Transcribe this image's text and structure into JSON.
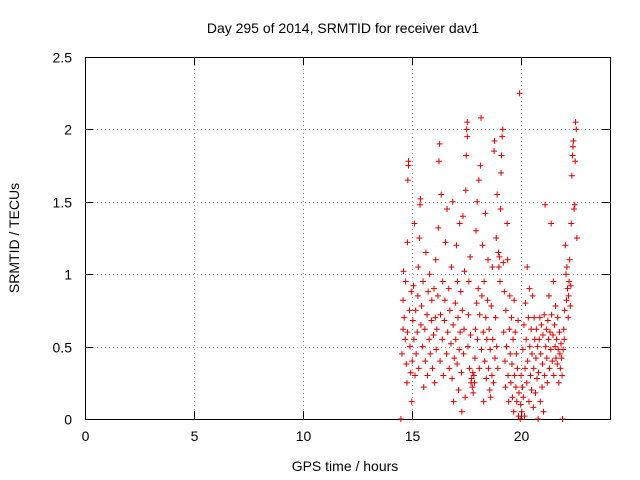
{
  "chart_data": {
    "type": "scatter",
    "title": "Day 295 of 2014, SRMTID for receiver dav1",
    "xlabel": "GPS time / hours",
    "ylabel": "SRMTID / TECUs",
    "xlim": [
      0,
      24.1
    ],
    "ylim": [
      0,
      2.5
    ],
    "x_ticks": [
      0,
      5,
      10,
      15,
      20
    ],
    "x_tick_labels": [
      "0",
      "5",
      "10",
      "15",
      "20"
    ],
    "y_ticks": [
      0,
      0.5,
      1,
      1.5,
      2,
      2.5
    ],
    "y_tick_labels": [
      "0",
      "0.5",
      "1",
      "1.5",
      "2",
      "2.5"
    ],
    "grid": true,
    "marker": "plus",
    "color": "#e00000",
    "series": [
      {
        "name": "SRMTID",
        "points": [
          [
            14.5,
            0.0
          ],
          [
            14.55,
            0.45
          ],
          [
            14.6,
            0.62
          ],
          [
            14.6,
            0.82
          ],
          [
            14.62,
            1.02
          ],
          [
            14.65,
            0.7
          ],
          [
            14.7,
            0.55
          ],
          [
            14.72,
            0.95
          ],
          [
            14.75,
            0.38
          ],
          [
            14.78,
            0.25
          ],
          [
            14.8,
            0.6
          ],
          [
            14.8,
            1.22
          ],
          [
            14.82,
            1.65
          ],
          [
            14.85,
            1.78
          ],
          [
            14.85,
            1.75
          ],
          [
            14.9,
            0.75
          ],
          [
            14.92,
            0.5
          ],
          [
            14.95,
            0.32
          ],
          [
            14.98,
            0.88
          ],
          [
            15.0,
            0.12
          ],
          [
            15.02,
            0.4
          ],
          [
            15.05,
            0.68
          ],
          [
            15.08,
            0.92
          ],
          [
            15.1,
            0.55
          ],
          [
            15.12,
            1.35
          ],
          [
            15.15,
            0.3
          ],
          [
            15.18,
            0.75
          ],
          [
            15.2,
            0.45
          ],
          [
            15.25,
            0.6
          ],
          [
            15.28,
            0.85
          ],
          [
            15.3,
            1.05
          ],
          [
            15.32,
            0.35
          ],
          [
            15.35,
            1.25
          ],
          [
            15.38,
            1.48
          ],
          [
            15.4,
            1.52
          ],
          [
            15.42,
            0.65
          ],
          [
            15.45,
            0.78
          ],
          [
            15.5,
            0.5
          ],
          [
            15.52,
            0.95
          ],
          [
            15.55,
            0.22
          ],
          [
            15.6,
            0.62
          ],
          [
            15.62,
            0.4
          ],
          [
            15.65,
            1.15
          ],
          [
            15.7,
            0.72
          ],
          [
            15.72,
            0.3
          ],
          [
            15.75,
            0.88
          ],
          [
            15.8,
            0.55
          ],
          [
            15.82,
            1.0
          ],
          [
            15.85,
            0.45
          ],
          [
            15.9,
            0.68
          ],
          [
            15.92,
            0.82
          ],
          [
            15.95,
            0.35
          ],
          [
            16.0,
            0.58
          ],
          [
            16.02,
            0.9
          ],
          [
            16.05,
            0.25
          ],
          [
            16.08,
            0.7
          ],
          [
            16.1,
            1.1
          ],
          [
            16.12,
            0.48
          ],
          [
            16.15,
            0.62
          ],
          [
            16.2,
            0.85
          ],
          [
            16.22,
            1.32
          ],
          [
            16.25,
            1.78
          ],
          [
            16.28,
            1.9
          ],
          [
            16.3,
            0.4
          ],
          [
            16.32,
            0.72
          ],
          [
            16.35,
            1.55
          ],
          [
            16.4,
            0.55
          ],
          [
            16.42,
            0.95
          ],
          [
            16.45,
            0.3
          ],
          [
            16.5,
            0.68
          ],
          [
            16.52,
            0.82
          ],
          [
            16.55,
            1.22
          ],
          [
            16.6,
            0.45
          ],
          [
            16.62,
            1.45
          ],
          [
            16.65,
            0.6
          ],
          [
            16.7,
            0.9
          ],
          [
            16.72,
            0.35
          ],
          [
            16.75,
            0.75
          ],
          [
            16.8,
            0.52
          ],
          [
            16.82,
            1.05
          ],
          [
            16.85,
            0.28
          ],
          [
            16.88,
            1.5
          ],
          [
            16.9,
            0.65
          ],
          [
            16.92,
            0.12
          ],
          [
            16.95,
            0.42
          ],
          [
            17.0,
            0.8
          ],
          [
            17.02,
            0.55
          ],
          [
            17.05,
            1.2
          ],
          [
            17.08,
            0.38
          ],
          [
            17.1,
            0.95
          ],
          [
            17.12,
            0.7
          ],
          [
            17.15,
            0.2
          ],
          [
            17.18,
            0.48
          ],
          [
            17.2,
            1.35
          ],
          [
            17.22,
            0.6
          ],
          [
            17.25,
            0.88
          ],
          [
            17.28,
            0.32
          ],
          [
            17.3,
            0.05
          ],
          [
            17.32,
            0.75
          ],
          [
            17.35,
            1.4
          ],
          [
            17.38,
            0.45
          ],
          [
            17.4,
            0.62
          ],
          [
            17.42,
            1.02
          ],
          [
            17.45,
            0.15
          ],
          [
            17.48,
            1.58
          ],
          [
            17.5,
            1.82
          ],
          [
            17.52,
            2.0
          ],
          [
            17.55,
            2.05
          ],
          [
            17.55,
            1.95
          ],
          [
            17.58,
            0.5
          ],
          [
            17.6,
            0.72
          ],
          [
            17.62,
            0.95
          ],
          [
            17.65,
            0.35
          ],
          [
            17.68,
            1.12
          ],
          [
            17.7,
            0.58
          ],
          [
            17.72,
            0.25
          ],
          [
            17.75,
            0.28
          ],
          [
            17.78,
            0.22
          ],
          [
            17.8,
            0.32
          ],
          [
            17.82,
            0.18
          ],
          [
            17.85,
            0.3
          ],
          [
            17.88,
            0.25
          ],
          [
            17.9,
            0.42
          ],
          [
            17.92,
            0.62
          ],
          [
            17.95,
            1.3
          ],
          [
            17.98,
            0.8
          ],
          [
            18.0,
            1.5
          ],
          [
            18.02,
            0.55
          ],
          [
            18.05,
            0.9
          ],
          [
            18.08,
            1.65
          ],
          [
            18.1,
            0.35
          ],
          [
            18.12,
            0.72
          ],
          [
            18.15,
            1.75
          ],
          [
            18.18,
            2.08
          ],
          [
            18.2,
            0.48
          ],
          [
            18.22,
            0.85
          ],
          [
            18.25,
            1.2
          ],
          [
            18.28,
            0.6
          ],
          [
            18.3,
            0.12
          ],
          [
            18.32,
            0.95
          ],
          [
            18.35,
            0.4
          ],
          [
            18.38,
            1.42
          ],
          [
            18.4,
            0.7
          ],
          [
            18.42,
            0.28
          ],
          [
            18.45,
            0.55
          ],
          [
            18.48,
            0.82
          ],
          [
            18.5,
            1.1
          ],
          [
            18.52,
            0.35
          ],
          [
            18.55,
            0.62
          ],
          [
            18.58,
            0.2
          ],
          [
            18.6,
            0.48
          ],
          [
            18.62,
            0.15
          ],
          [
            18.65,
            0.78
          ],
          [
            18.68,
            0.3
          ],
          [
            18.7,
            1.05
          ],
          [
            18.72,
            0.55
          ],
          [
            18.75,
            0.25
          ],
          [
            18.78,
            1.85
          ],
          [
            18.8,
            1.92
          ],
          [
            18.82,
            0.42
          ],
          [
            18.85,
            0.7
          ],
          [
            18.88,
            1.25
          ],
          [
            18.9,
            0.5
          ],
          [
            18.92,
            1.55
          ],
          [
            18.95,
            0.35
          ],
          [
            18.98,
            1.15
          ],
          [
            19.0,
            1.05
          ],
          [
            19.02,
            1.12
          ],
          [
            19.05,
            0.95
          ],
          [
            19.08,
            1.45
          ],
          [
            19.1,
            1.7
          ],
          [
            19.12,
            1.82
          ],
          [
            19.15,
            1.95
          ],
          [
            19.18,
            2.0
          ],
          [
            19.2,
            1.08
          ],
          [
            19.22,
            0.6
          ],
          [
            19.25,
            0.88
          ],
          [
            19.28,
            0.4
          ],
          [
            19.3,
            0.22
          ],
          [
            19.32,
            0.75
          ],
          [
            19.35,
            0.5
          ],
          [
            19.38,
            1.35
          ],
          [
            19.4,
            1.1
          ],
          [
            19.42,
            0.3
          ],
          [
            19.45,
            0.12
          ],
          [
            19.48,
            0.62
          ],
          [
            19.5,
            0.85
          ],
          [
            19.52,
            0.45
          ],
          [
            19.55,
            0.25
          ],
          [
            19.58,
            0.7
          ],
          [
            19.6,
            0.38
          ],
          [
            19.62,
            0.15
          ],
          [
            19.65,
            0.55
          ],
          [
            19.68,
            0.05
          ],
          [
            19.7,
            0.82
          ],
          [
            19.72,
            0.3
          ],
          [
            19.75,
            0.6
          ],
          [
            19.78,
            0.22
          ],
          [
            19.8,
            0.45
          ],
          [
            19.82,
            0.12
          ],
          [
            19.85,
            0.35
          ],
          [
            19.88,
            0.68
          ],
          [
            19.9,
            0.02
          ],
          [
            19.92,
            0.18
          ],
          [
            19.95,
            2.25
          ],
          [
            19.98,
            0.0
          ],
          [
            20.0,
            0.1
          ],
          [
            20.02,
            0.3
          ],
          [
            20.05,
            0.05
          ],
          [
            20.08,
            0.22
          ],
          [
            20.1,
            0.48
          ],
          [
            20.12,
            0.15
          ],
          [
            20.15,
            0.65
          ],
          [
            20.18,
            0.02
          ],
          [
            20.2,
            0.35
          ],
          [
            20.22,
            0.8
          ],
          [
            20.25,
            0.55
          ],
          [
            20.28,
            0.25
          ],
          [
            20.3,
            1.05
          ],
          [
            20.32,
            0.4
          ],
          [
            20.35,
            0.7
          ],
          [
            20.38,
            0.12
          ],
          [
            20.4,
            0.9
          ],
          [
            20.42,
            0.5
          ],
          [
            20.45,
            0.3
          ],
          [
            20.48,
            0.62
          ],
          [
            20.5,
            0.2
          ],
          [
            20.52,
            0.45
          ],
          [
            20.55,
            0.85
          ],
          [
            20.58,
            0.08
          ],
          [
            20.6,
            0.35
          ],
          [
            20.62,
            0.7
          ],
          [
            20.65,
            0.55
          ],
          [
            20.68,
            0.18
          ],
          [
            20.7,
            0.42
          ],
          [
            20.72,
            0.62
          ],
          [
            20.75,
            0.28
          ],
          [
            20.78,
            0.5
          ],
          [
            20.8,
            0.0
          ],
          [
            20.82,
            0.32
          ],
          [
            20.85,
            0.55
          ],
          [
            20.88,
            0.7
          ],
          [
            20.9,
            0.12
          ],
          [
            20.92,
            0.45
          ],
          [
            20.95,
            0.65
          ],
          [
            20.98,
            0.22
          ],
          [
            21.0,
            0.38
          ],
          [
            21.02,
            0.58
          ],
          [
            21.05,
            0.05
          ],
          [
            21.08,
            0.72
          ],
          [
            21.1,
            0.3
          ],
          [
            21.12,
            1.48
          ],
          [
            21.15,
            0.5
          ],
          [
            21.18,
            0.62
          ],
          [
            21.2,
            0.42
          ],
          [
            21.22,
            0.25
          ],
          [
            21.25,
            0.68
          ],
          [
            21.28,
            0.55
          ],
          [
            21.3,
            0.85
          ],
          [
            21.32,
            0.35
          ],
          [
            21.35,
            0.6
          ],
          [
            21.38,
            0.48
          ],
          [
            21.4,
            1.35
          ],
          [
            21.42,
            0.72
          ],
          [
            21.45,
            0.4
          ],
          [
            21.48,
            0.58
          ],
          [
            21.5,
            0.95
          ],
          [
            21.52,
            0.3
          ],
          [
            21.55,
            0.65
          ],
          [
            21.58,
            0.5
          ],
          [
            21.6,
            0.78
          ],
          [
            21.62,
            0.42
          ],
          [
            21.65,
            0.55
          ],
          [
            21.68,
            0.38
          ],
          [
            21.7,
            0.7
          ],
          [
            21.72,
            0.48
          ],
          [
            21.75,
            0.25
          ],
          [
            21.78,
            0.6
          ],
          [
            21.8,
            0.45
          ],
          [
            21.82,
            0.35
          ],
          [
            21.85,
            0.52
          ],
          [
            21.88,
            0.42
          ],
          [
            21.9,
            0.3
          ],
          [
            21.92,
            0.0
          ],
          [
            21.95,
            0.48
          ],
          [
            21.98,
            0.62
          ],
          [
            22.0,
            0.55
          ],
          [
            22.02,
            0.75
          ],
          [
            22.05,
            1.2
          ],
          [
            22.08,
            1.0
          ],
          [
            22.1,
            0.82
          ],
          [
            22.12,
            1.05
          ],
          [
            22.15,
            0.9
          ],
          [
            22.18,
            0.7
          ],
          [
            22.2,
            0.85
          ],
          [
            22.22,
            0.95
          ],
          [
            22.25,
            1.1
          ],
          [
            22.28,
            0.78
          ],
          [
            22.3,
            0.92
          ],
          [
            22.32,
            1.35
          ],
          [
            22.35,
            1.68
          ],
          [
            22.38,
            1.82
          ],
          [
            22.4,
            1.88
          ],
          [
            22.42,
            1.92
          ],
          [
            22.45,
            1.45
          ],
          [
            22.48,
            1.48
          ],
          [
            22.5,
            1.78
          ],
          [
            22.52,
            2.05
          ],
          [
            22.55,
            2.0
          ],
          [
            22.58,
            1.25
          ]
        ]
      }
    ]
  }
}
